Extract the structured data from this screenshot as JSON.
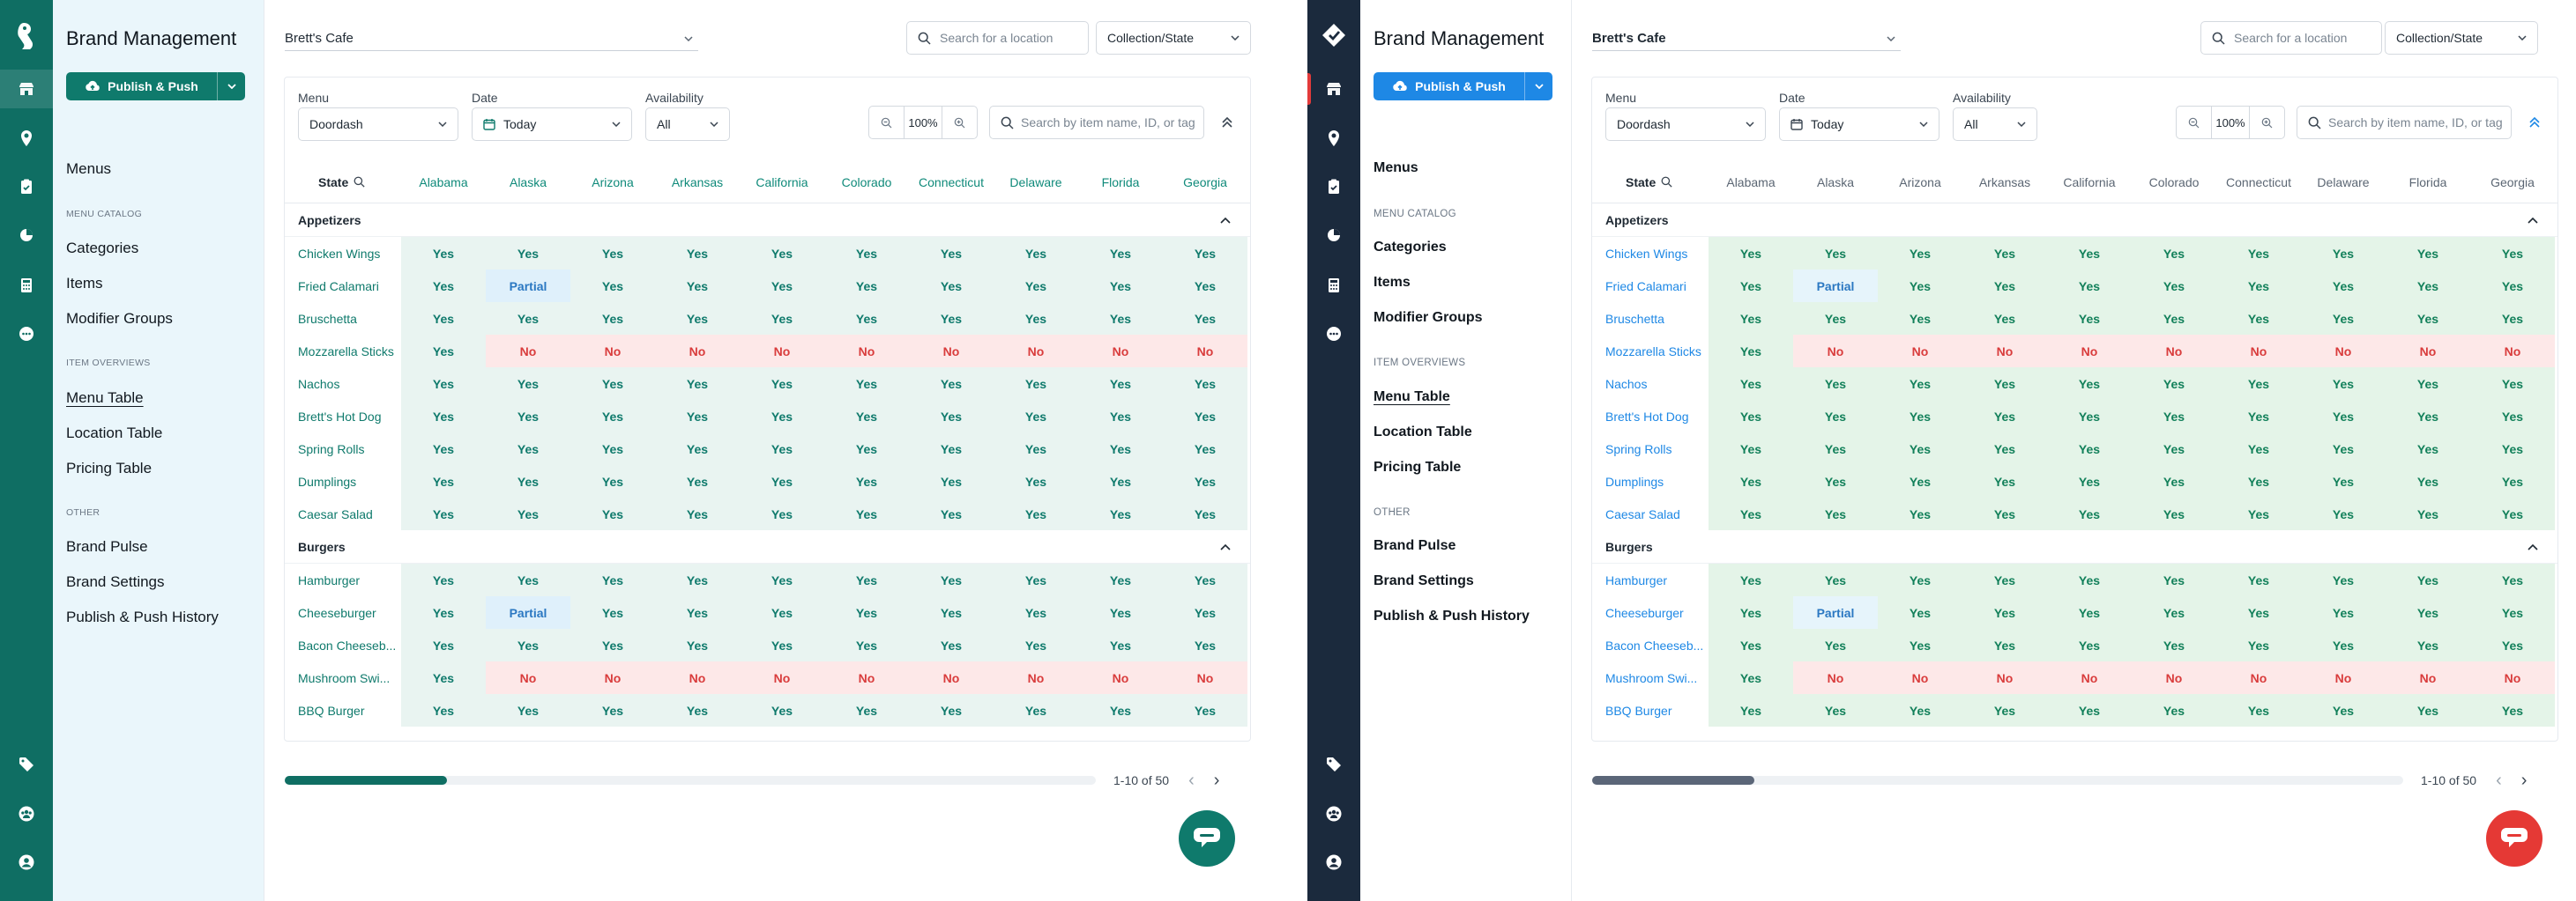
{
  "columns": [
    "Alabama",
    "Alaska",
    "Arizona",
    "Arkansas",
    "California",
    "Colorado",
    "Connecticut",
    "Delaware",
    "Florida",
    "Georgia"
  ],
  "variants": [
    {
      "panel_title": "Brand Management",
      "publish_label": "Publish & Push",
      "nav": {
        "menus": "Menus",
        "catalog_section": "MENU CATALOG",
        "categories": "Categories",
        "items": "Items",
        "modifier_groups": "Modifier Groups",
        "overviews_section": "ITEM OVERVIEWS",
        "menu_table": "Menu Table",
        "location_table": "Location Table",
        "pricing_table": "Pricing Table",
        "other_section": "OTHER",
        "brand_pulse": "Brand Pulse",
        "brand_settings": "Brand Settings",
        "publish_history": "Publish & Push History"
      },
      "brand": "Brett's Cafe",
      "location_search_placeholder": "Search for a location",
      "collection_select": "Collection/State",
      "filters": {
        "menu_label": "Menu",
        "menu_value": "Doordash",
        "date_label": "Date",
        "date_value": "Today",
        "availability_label": "Availability",
        "availability_value": "All"
      },
      "zoom": "100%",
      "item_search_placeholder": "Search by item name, ID, or tag",
      "state_header": "State",
      "pager_text": "1-10 of 50"
    },
    {
      "panel_title": "Brand Management",
      "publish_label": "Publish & Push",
      "nav": {
        "menus": "Menus",
        "catalog_section": "MENU CATALOG",
        "categories": "Categories",
        "items": "Items",
        "modifier_groups": "Modifier Groups",
        "overviews_section": "ITEM OVERVIEWS",
        "menu_table": "Menu Table",
        "location_table": "Location Table",
        "pricing_table": "Pricing Table",
        "other_section": "OTHER",
        "brand_pulse": "Brand Pulse",
        "brand_settings": "Brand Settings",
        "publish_history": "Publish & Push History"
      },
      "brand": "Brett's Cafe",
      "location_search_placeholder": "Search for a location",
      "collection_select": "Collection/State",
      "filters": {
        "menu_label": "Menu",
        "menu_value": "Doordash",
        "date_label": "Date",
        "date_value": "Today",
        "availability_label": "Availability",
        "availability_value": "All"
      },
      "zoom": "100%",
      "item_search_placeholder": "Search by item name, ID, or tag",
      "state_header": "State",
      "pager_text": "1-10 of 50"
    }
  ],
  "groups": [
    {
      "name": "Appetizers",
      "rows": [
        {
          "item": "Chicken Wings",
          "values": [
            "Yes",
            "Yes",
            "Yes",
            "Yes",
            "Yes",
            "Yes",
            "Yes",
            "Yes",
            "Yes",
            "Yes"
          ]
        },
        {
          "item": "Fried Calamari",
          "values": [
            "Yes",
            "Partial",
            "Yes",
            "Yes",
            "Yes",
            "Yes",
            "Yes",
            "Yes",
            "Yes",
            "Yes"
          ]
        },
        {
          "item": "Bruschetta",
          "values": [
            "Yes",
            "Yes",
            "Yes",
            "Yes",
            "Yes",
            "Yes",
            "Yes",
            "Yes",
            "Yes",
            "Yes"
          ]
        },
        {
          "item": "Mozzarella Sticks",
          "values": [
            "Yes",
            "No",
            "No",
            "No",
            "No",
            "No",
            "No",
            "No",
            "No",
            "No"
          ]
        },
        {
          "item": "Nachos",
          "values": [
            "Yes",
            "Yes",
            "Yes",
            "Yes",
            "Yes",
            "Yes",
            "Yes",
            "Yes",
            "Yes",
            "Yes"
          ]
        },
        {
          "item": "Brett's Hot Dog",
          "values": [
            "Yes",
            "Yes",
            "Yes",
            "Yes",
            "Yes",
            "Yes",
            "Yes",
            "Yes",
            "Yes",
            "Yes"
          ]
        },
        {
          "item": "Spring Rolls",
          "values": [
            "Yes",
            "Yes",
            "Yes",
            "Yes",
            "Yes",
            "Yes",
            "Yes",
            "Yes",
            "Yes",
            "Yes"
          ]
        },
        {
          "item": "Dumplings",
          "values": [
            "Yes",
            "Yes",
            "Yes",
            "Yes",
            "Yes",
            "Yes",
            "Yes",
            "Yes",
            "Yes",
            "Yes"
          ]
        },
        {
          "item": "Caesar Salad",
          "values": [
            "Yes",
            "Yes",
            "Yes",
            "Yes",
            "Yes",
            "Yes",
            "Yes",
            "Yes",
            "Yes",
            "Yes"
          ]
        }
      ]
    },
    {
      "name": "Burgers",
      "rows": [
        {
          "item": "Hamburger",
          "values": [
            "Yes",
            "Yes",
            "Yes",
            "Yes",
            "Yes",
            "Yes",
            "Yes",
            "Yes",
            "Yes",
            "Yes"
          ]
        },
        {
          "item": "Cheeseburger",
          "values": [
            "Yes",
            "Partial",
            "Yes",
            "Yes",
            "Yes",
            "Yes",
            "Yes",
            "Yes",
            "Yes",
            "Yes"
          ]
        },
        {
          "item": "Bacon Cheeseb...",
          "values": [
            "Yes",
            "Yes",
            "Yes",
            "Yes",
            "Yes",
            "Yes",
            "Yes",
            "Yes",
            "Yes",
            "Yes"
          ]
        },
        {
          "item": "Mushroom Swi...",
          "values": [
            "Yes",
            "No",
            "No",
            "No",
            "No",
            "No",
            "No",
            "No",
            "No",
            "No"
          ]
        },
        {
          "item": "BBQ Burger",
          "values": [
            "Yes",
            "Yes",
            "Yes",
            "Yes",
            "Yes",
            "Yes",
            "Yes",
            "Yes",
            "Yes",
            "Yes"
          ]
        }
      ]
    }
  ],
  "horizontal_scroll_position": 0.2,
  "theme_colors": {
    "teal": "#0f6e63",
    "navy": "#1b2a3d",
    "blue": "#1e88e5",
    "red": "#e53935"
  }
}
